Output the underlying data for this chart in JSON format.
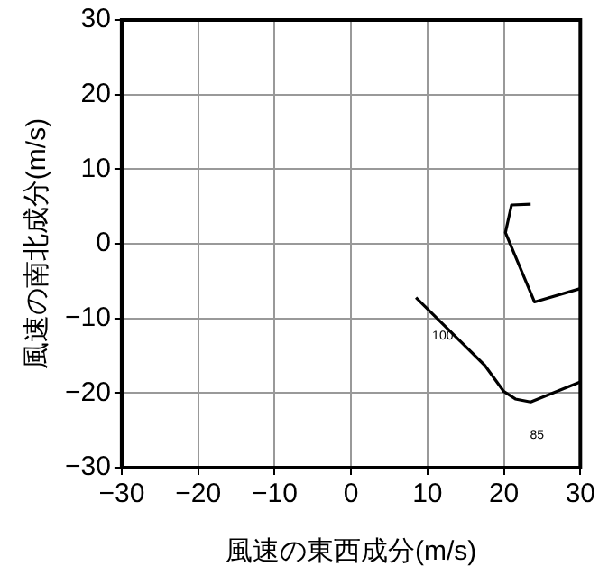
{
  "chart_data": {
    "type": "line",
    "xlabel": "風速の東西成分(m/s)",
    "ylabel": "風速の南北成分(m/s)",
    "series": [
      {
        "color": "#000000",
        "x": [
          8.5,
          17.5,
          20,
          21.5,
          23.5,
          30,
          null,
          30,
          24,
          20.2,
          21,
          23.5
        ],
        "values": [
          -7.2,
          -16.3,
          -19.8,
          -20.8,
          -21.2,
          -18.5,
          null,
          -6,
          -7.8,
          1.5,
          5.2,
          5.3
        ]
      }
    ],
    "xlim": [
      -30,
      30
    ],
    "xticks": [
      -30,
      -20,
      -10,
      0,
      10,
      20,
      30
    ],
    "ylim": [
      -30,
      30
    ],
    "yticks": [
      -30,
      -20,
      -10,
      0,
      10,
      20,
      30
    ],
    "grid": true,
    "legend": false,
    "marker": "none",
    "line_style": "solid",
    "annotations": [
      {
        "text": "100",
        "x": 12,
        "y": -12.3
      },
      "85"
    ]
  }
}
